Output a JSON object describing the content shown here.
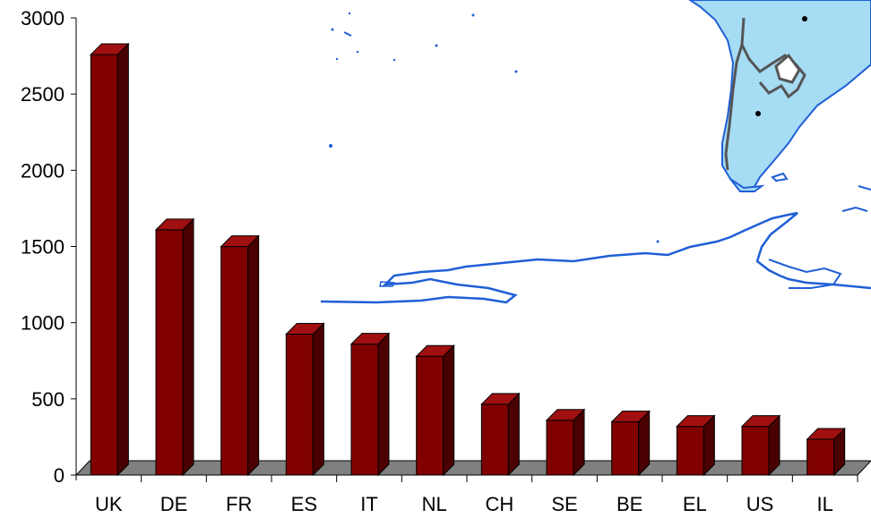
{
  "chart_data": {
    "type": "bar",
    "style": "3d-column",
    "categories": [
      "UK",
      "DE",
      "FR",
      "ES",
      "IT",
      "NL",
      "CH",
      "SE",
      "BE",
      "EL",
      "US",
      "IL"
    ],
    "values": [
      2830,
      1680,
      1570,
      995,
      930,
      850,
      535,
      430,
      420,
      390,
      390,
      305
    ],
    "ylim": [
      0,
      3000
    ],
    "yticks": [
      "0",
      "500",
      "1000",
      "1500",
      "2000",
      "2500",
      "3000"
    ],
    "ytick_values": [
      0,
      500,
      1000,
      1500,
      2000,
      2500,
      3000
    ],
    "grid": false,
    "legend": "none",
    "background": "map of South America and Antarctica (light blue land, blue coastlines)"
  },
  "colors": {
    "bar_front": "#800000",
    "bar_side": "#4a0000",
    "bar_top": "#a01010",
    "floor": "#808080",
    "map_land": "#a6dcf4",
    "map_coast": "#1f5fd6",
    "map_border": "#555555"
  }
}
